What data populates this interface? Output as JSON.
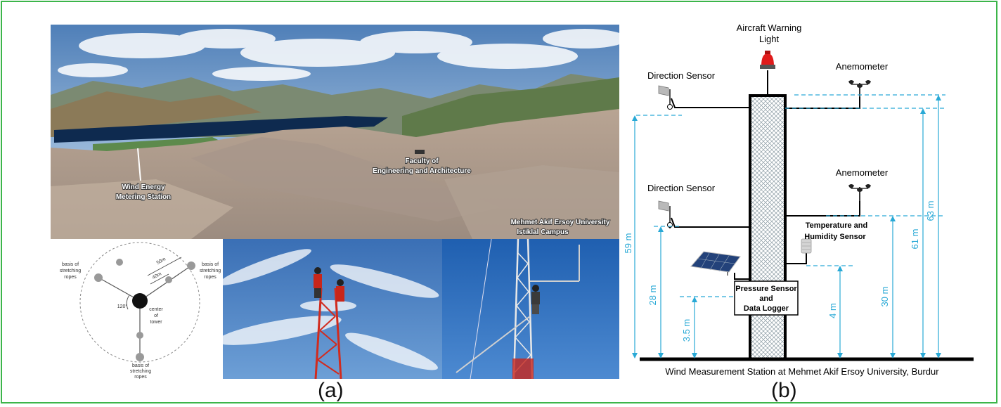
{
  "figure": {
    "caption_a": "(a)",
    "caption_b": "(b)",
    "border_color": "#3cb54a"
  },
  "panel_a": {
    "aerial_photo": {
      "station_label_line1": "Wind Energy",
      "station_label_line2": "Metering Station",
      "faculty_label_line1": "Faculty of",
      "faculty_label_line2": "Engineering and Architecture",
      "campus_label_line1": "Mehmet Akif Ersoy University",
      "campus_label_line2": "Istiklal Campus"
    },
    "tower_layout": {
      "anchor_label_left_1": "basis of",
      "anchor_label_left_2": "stretching",
      "anchor_label_left_3": "ropes",
      "anchor_label_right_1": "basis of",
      "anchor_label_right_2": "stretching",
      "anchor_label_right_3": "ropes",
      "anchor_label_bottom_1": "basis of",
      "anchor_label_bottom_2": "stretching",
      "anchor_label_bottom_3": "ropes",
      "center_label_1": "center",
      "center_label_2": "of",
      "center_label_3": "tower",
      "angle_label": "120°",
      "dist_outer": "50m",
      "dist_inner": "40m"
    }
  },
  "panel_b": {
    "aircraft_light_line1": "Aircraft Warning",
    "aircraft_light_line2": "Light",
    "direction_sensor_top": "Direction Sensor",
    "direction_sensor_low": "Direction Sensor",
    "anemometer_top": "Anemometer",
    "anemometer_low": "Anemometer",
    "temp_humidity_line1": "Temperature and",
    "temp_humidity_line2": "Humidity Sensor",
    "pressure_line1": "Pressure Sensor",
    "pressure_line2": "and",
    "pressure_line3": "Data Logger",
    "heights": {
      "h59": "59 m",
      "h28": "28 m",
      "h3_5": "3.5 m",
      "h4": "4 m",
      "h30": "30 m",
      "h61": "61 m",
      "h63": "63 m"
    },
    "ground_caption": "Wind Measurement Station at Mehmet Akif Ersoy University, Burdur",
    "dimension_color": "#29a9d6"
  }
}
